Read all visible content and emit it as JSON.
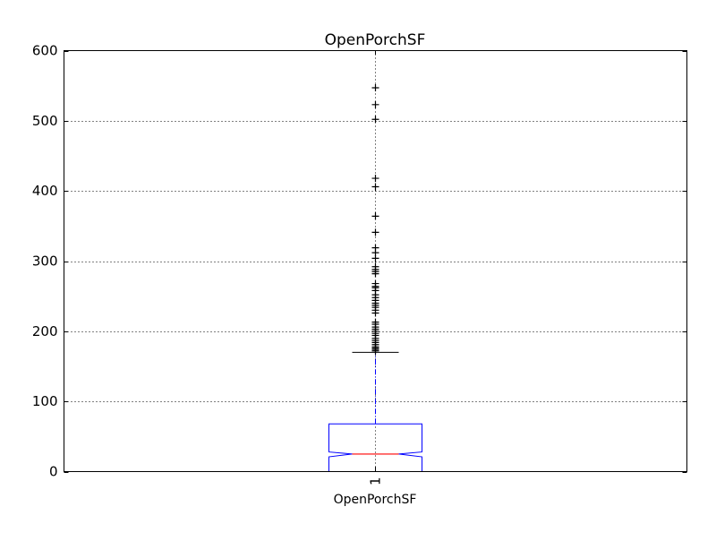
{
  "chart_data": {
    "type": "boxplot",
    "title": "OpenPorchSF",
    "xlabel": "OpenPorchSF",
    "ylabel": "",
    "categories": [
      "1"
    ],
    "ylim": [
      0,
      600
    ],
    "yticks": [
      0,
      100,
      200,
      300,
      400,
      500,
      600
    ],
    "grid": true,
    "notched": true,
    "box": {
      "whisker_low": 0,
      "q1": 0,
      "notch_low": 21,
      "median": 25,
      "notch_high": 28,
      "q3": 68,
      "whisker_high": 170
    },
    "outliers": [
      547,
      523,
      502,
      418,
      406,
      364,
      341,
      319,
      312,
      304,
      292,
      288,
      285,
      282,
      268,
      264,
      262,
      258,
      252,
      248,
      244,
      240,
      237,
      234,
      230,
      226,
      213,
      210,
      206,
      203,
      200,
      197,
      194,
      190,
      187,
      184,
      181,
      178,
      176,
      174,
      172
    ],
    "colors": {
      "box": "#0000ff",
      "whisker": "#0000ff",
      "median": "#ff0000",
      "cap": "#000000",
      "flier": "#000000",
      "grid": "#000000"
    }
  }
}
